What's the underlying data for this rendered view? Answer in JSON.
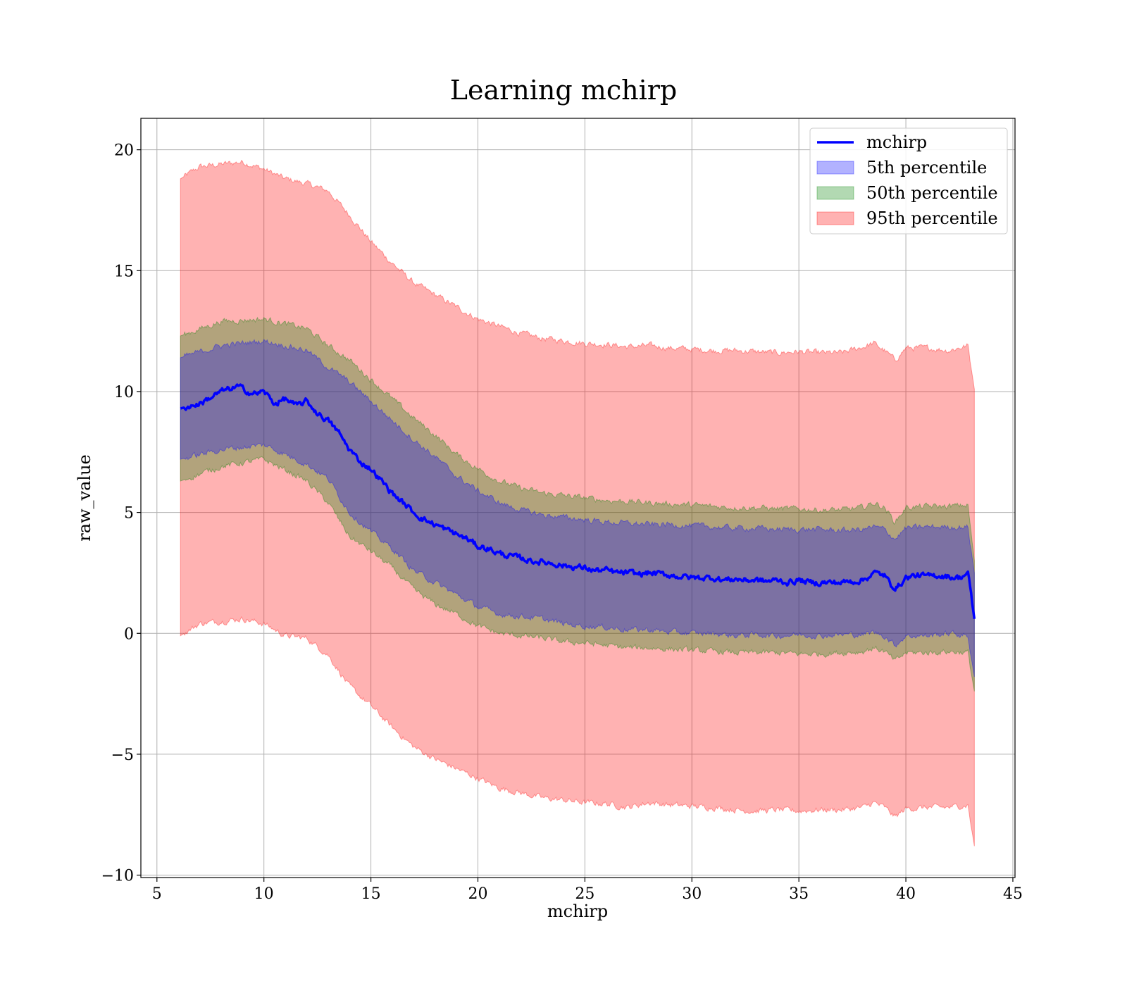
{
  "chart_data": {
    "type": "area",
    "title": "Learning mchirp",
    "xlabel": "mchirp",
    "ylabel": "raw_value",
    "xlim": [
      4.25,
      45.1
    ],
    "ylim": [
      -10.1,
      21.3
    ],
    "xticks": [
      5,
      10,
      15,
      20,
      25,
      30,
      35,
      40,
      45
    ],
    "yticks": [
      -10,
      -5,
      0,
      5,
      10,
      15,
      20
    ],
    "xtick_labels": [
      "5",
      "10",
      "15",
      "20",
      "25",
      "30",
      "35",
      "40",
      "45"
    ],
    "ytick_labels": [
      "−10",
      "−5",
      "0",
      "5",
      "10",
      "15",
      "20"
    ],
    "grid": true,
    "legend_position": "top-right",
    "colors": {
      "line": "#0000ff",
      "band_5": "#0000ff",
      "band_50": "#008000",
      "band_95": "#ff0000",
      "grid": "#b0b0b0"
    },
    "series": [
      {
        "name": "mchirp",
        "kind": "line",
        "x": [
          6.1,
          7,
          8,
          8.8,
          9.5,
          10,
          10.5,
          11,
          11.5,
          12,
          12.5,
          13,
          13.5,
          14,
          14.5,
          15,
          15.5,
          16,
          16.5,
          17,
          17.5,
          18,
          18.5,
          19,
          19.5,
          20,
          20.5,
          21,
          21.5,
          22,
          22.5,
          23,
          23.5,
          24,
          24.5,
          25,
          25.5,
          26,
          26.5,
          27,
          27.5,
          28,
          28.5,
          29,
          29.5,
          30,
          30.5,
          31,
          31.5,
          32,
          32.5,
          33,
          33.5,
          34,
          34.5,
          35,
          35.5,
          36,
          36.5,
          37,
          37.5,
          38,
          38.5,
          39,
          39.3,
          39.6,
          40,
          40.5,
          41,
          41.5,
          42,
          42.5,
          42.9,
          43.2
        ],
        "values": [
          9.3,
          9.5,
          10.0,
          10.2,
          9.9,
          10.0,
          9.5,
          9.7,
          9.4,
          9.6,
          9.1,
          8.8,
          8.3,
          7.6,
          7.1,
          6.8,
          6.3,
          5.8,
          5.4,
          5.0,
          4.7,
          4.5,
          4.3,
          4.1,
          3.9,
          3.6,
          3.5,
          3.3,
          3.2,
          3.1,
          3.0,
          2.95,
          2.9,
          2.8,
          2.75,
          2.7,
          2.6,
          2.6,
          2.5,
          2.5,
          2.45,
          2.5,
          2.45,
          2.4,
          2.35,
          2.3,
          2.3,
          2.3,
          2.2,
          2.25,
          2.2,
          2.2,
          2.15,
          2.2,
          2.1,
          2.2,
          2.1,
          2.1,
          2.1,
          2.1,
          2.15,
          2.2,
          2.5,
          2.4,
          2.0,
          1.9,
          2.3,
          2.4,
          2.35,
          2.4,
          2.35,
          2.3,
          2.5,
          0.6
        ]
      },
      {
        "name": "5th percentile",
        "kind": "band",
        "x": [
          6.1,
          8,
          10,
          12,
          13,
          14,
          15,
          16,
          17,
          18,
          19,
          20,
          21,
          22,
          23,
          24,
          25,
          26,
          27,
          28,
          29,
          30,
          31,
          32,
          33,
          34,
          35,
          36,
          37,
          38,
          38.5,
          39,
          39.5,
          40,
          41,
          42,
          42.9,
          43.2
        ],
        "lower": [
          7.2,
          7.6,
          7.8,
          7.0,
          6.4,
          5.0,
          4.2,
          3.5,
          2.6,
          2.1,
          1.6,
          1.1,
          0.8,
          0.7,
          0.6,
          0.4,
          0.3,
          0.25,
          0.15,
          0.15,
          0.05,
          0.0,
          0.0,
          -0.1,
          -0.05,
          -0.1,
          -0.05,
          -0.1,
          -0.05,
          -0.05,
          0.05,
          -0.1,
          -0.5,
          -0.1,
          -0.1,
          0.0,
          -0.1,
          -1.8
        ],
        "upper": [
          11.4,
          11.9,
          12.1,
          11.7,
          11.0,
          10.4,
          9.6,
          8.8,
          8.0,
          7.3,
          6.5,
          5.9,
          5.4,
          5.1,
          4.9,
          4.8,
          4.7,
          4.6,
          4.55,
          4.5,
          4.5,
          4.45,
          4.4,
          4.35,
          4.35,
          4.3,
          4.3,
          4.3,
          4.25,
          4.3,
          4.4,
          4.3,
          3.9,
          4.35,
          4.4,
          4.4,
          4.4,
          2.5
        ]
      },
      {
        "name": "50th percentile",
        "kind": "band",
        "x": [
          6.1,
          8,
          10,
          12,
          13,
          14,
          15,
          16,
          17,
          18,
          19,
          20,
          21,
          22,
          23,
          24,
          25,
          26,
          27,
          28,
          29,
          30,
          31,
          32,
          33,
          34,
          35,
          36,
          37,
          38,
          38.5,
          39,
          39.5,
          40,
          41,
          42,
          42.9,
          43.2
        ],
        "lower": [
          6.3,
          6.9,
          7.2,
          6.3,
          5.4,
          4.0,
          3.4,
          2.7,
          1.8,
          1.2,
          0.8,
          0.3,
          0.0,
          -0.1,
          -0.2,
          -0.35,
          -0.4,
          -0.5,
          -0.6,
          -0.6,
          -0.65,
          -0.7,
          -0.75,
          -0.8,
          -0.8,
          -0.8,
          -0.85,
          -0.85,
          -0.8,
          -0.75,
          -0.6,
          -0.75,
          -1.15,
          -0.8,
          -0.8,
          -0.75,
          -0.8,
          -2.4
        ],
        "upper": [
          12.3,
          12.9,
          13.0,
          12.6,
          11.9,
          11.3,
          10.5,
          9.7,
          8.9,
          8.2,
          7.4,
          6.8,
          6.3,
          6.0,
          5.8,
          5.7,
          5.6,
          5.5,
          5.45,
          5.4,
          5.35,
          5.3,
          5.25,
          5.2,
          5.2,
          5.15,
          5.15,
          5.1,
          5.1,
          5.2,
          5.4,
          5.2,
          4.6,
          5.2,
          5.25,
          5.25,
          5.3,
          3.0
        ]
      },
      {
        "name": "95th percentile",
        "kind": "band",
        "x": [
          6.1,
          7,
          8,
          9,
          10,
          11,
          12,
          13,
          14,
          15,
          16,
          17,
          18,
          19,
          20,
          21,
          22,
          23,
          24,
          25,
          26,
          27,
          28,
          29,
          30,
          31,
          32,
          33,
          34,
          35,
          36,
          37,
          38,
          38.5,
          39,
          39.5,
          40,
          41,
          42,
          42.9,
          43.2
        ],
        "lower": [
          -0.1,
          0.4,
          0.5,
          0.6,
          0.4,
          -0.1,
          -0.2,
          -0.9,
          -2.2,
          -3.0,
          -3.9,
          -4.7,
          -5.2,
          -5.6,
          -6.0,
          -6.4,
          -6.6,
          -6.8,
          -6.9,
          -7.0,
          -7.05,
          -7.2,
          -7.0,
          -7.1,
          -7.15,
          -7.2,
          -7.3,
          -7.35,
          -7.3,
          -7.35,
          -7.3,
          -7.3,
          -7.2,
          -7.0,
          -7.2,
          -7.6,
          -7.25,
          -7.2,
          -7.2,
          -7.1,
          -8.8
        ],
        "upper": [
          18.8,
          19.3,
          19.4,
          19.5,
          19.2,
          18.8,
          18.6,
          18.3,
          17.3,
          16.2,
          15.3,
          14.5,
          14.0,
          13.5,
          13.0,
          12.7,
          12.4,
          12.2,
          12.1,
          12.0,
          11.95,
          11.85,
          11.9,
          11.8,
          11.75,
          11.7,
          11.7,
          11.65,
          11.6,
          11.65,
          11.6,
          11.6,
          11.85,
          12.0,
          11.7,
          11.3,
          11.8,
          11.8,
          11.7,
          11.9,
          10.1
        ]
      }
    ]
  }
}
